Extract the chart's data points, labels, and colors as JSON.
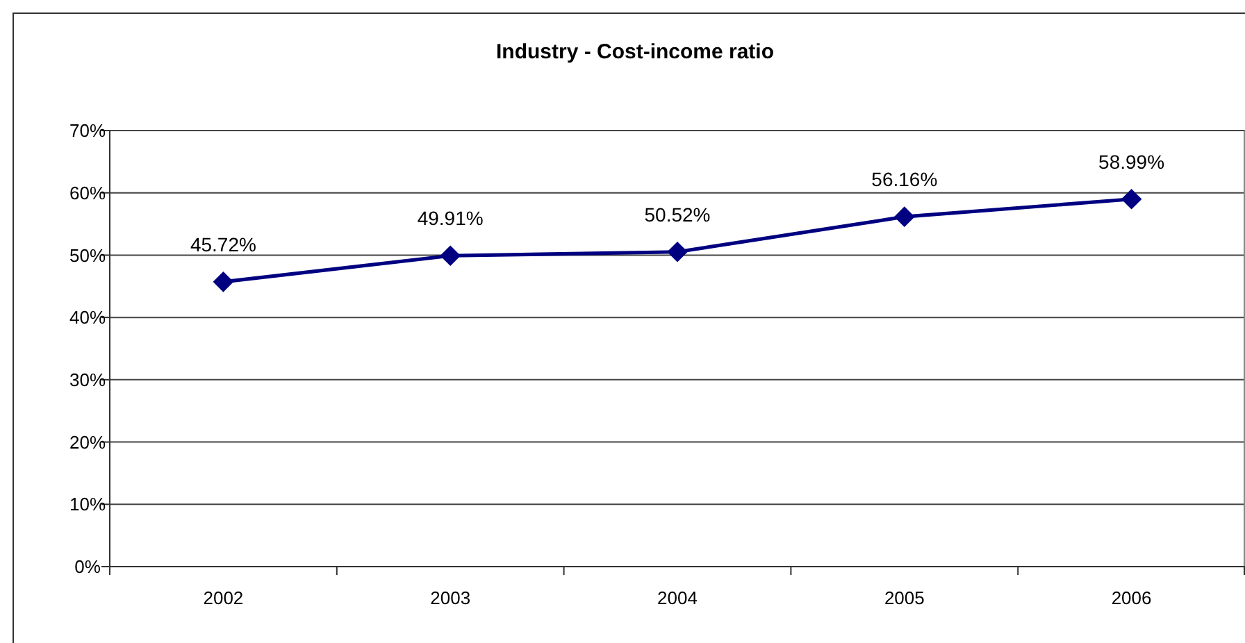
{
  "chart_data": {
    "type": "line",
    "title": "Industry - Cost-income ratio",
    "categories": [
      "2002",
      "2003",
      "2004",
      "2005",
      "2006"
    ],
    "series": [
      {
        "color": "#000080",
        "values": [
          45.72,
          49.91,
          50.52,
          56.16,
          58.99
        ],
        "value_labels": [
          "45.72%",
          "49.91%",
          "50.52%",
          "56.16%",
          "58.99%"
        ]
      }
    ],
    "ylim": [
      0,
      70
    ],
    "yticks": [
      {
        "value": 0,
        "label": "0%"
      },
      {
        "value": 10,
        "label": "10%"
      },
      {
        "value": 20,
        "label": "20%"
      },
      {
        "value": 30,
        "label": "30%"
      },
      {
        "value": 40,
        "label": "40%"
      },
      {
        "value": 50,
        "label": "50%"
      },
      {
        "value": 60,
        "label": "60%"
      },
      {
        "value": 70,
        "label": "70%"
      }
    ],
    "grid": "y",
    "marker": "diamond",
    "line_style": "solid"
  }
}
